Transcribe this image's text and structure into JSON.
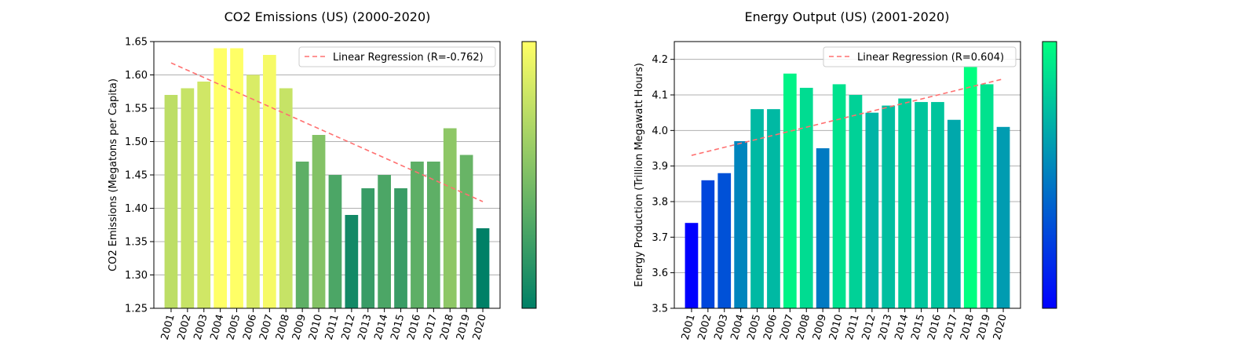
{
  "colors": {
    "regression_line": "#ff7070",
    "grid": "#b0b0b0",
    "summer_cmap": [
      "#008066",
      "#ffff66"
    ],
    "winter_cmap": [
      "#0000ff",
      "#00ff80"
    ]
  },
  "chart_data": [
    {
      "type": "bar",
      "title": "CO2 Emissions (US) (2000-2020)",
      "xlabel": "",
      "ylabel": "CO2 Emissions (Megatons per Capita)",
      "categories": [
        "2001",
        "2002",
        "2003",
        "2004",
        "2005",
        "2006",
        "2007",
        "2008",
        "2009",
        "2010",
        "2011",
        "2012",
        "2013",
        "2014",
        "2015",
        "2016",
        "2017",
        "2018",
        "2019",
        "2020"
      ],
      "values": [
        1.57,
        1.58,
        1.59,
        1.64,
        1.64,
        1.6,
        1.63,
        1.58,
        1.47,
        1.51,
        1.45,
        1.39,
        1.43,
        1.45,
        1.43,
        1.47,
        1.47,
        1.52,
        1.48,
        1.37
      ],
      "ylim": [
        1.25,
        1.65
      ],
      "yticks": [
        "1.25",
        "1.30",
        "1.35",
        "1.40",
        "1.45",
        "1.50",
        "1.55",
        "1.60",
        "1.65"
      ],
      "colormap": "summer",
      "colorbar": true,
      "grid": "y",
      "legend": {
        "placement": "upper-right",
        "label": "Linear Regression (R=-0.762)"
      },
      "regression": {
        "start": 1.618,
        "end": 1.41
      }
    },
    {
      "type": "bar",
      "title": "Energy Output (US) (2001-2020)",
      "xlabel": "",
      "ylabel": "Energy Production (Trillion Megawatt Hours)",
      "categories": [
        "2001",
        "2002",
        "2003",
        "2004",
        "2005",
        "2006",
        "2007",
        "2008",
        "2009",
        "2010",
        "2011",
        "2012",
        "2013",
        "2014",
        "2015",
        "2016",
        "2017",
        "2018",
        "2019",
        "2020"
      ],
      "values": [
        3.74,
        3.86,
        3.88,
        3.97,
        4.06,
        4.06,
        4.16,
        4.12,
        3.95,
        4.13,
        4.1,
        4.05,
        4.07,
        4.09,
        4.08,
        4.08,
        4.03,
        4.18,
        4.13,
        4.01
      ],
      "ylim": [
        3.5,
        4.25
      ],
      "yticks": [
        "3.5",
        "3.6",
        "3.7",
        "3.8",
        "3.9",
        "4.0",
        "4.1",
        "4.2"
      ],
      "colormap": "winter",
      "colorbar": true,
      "grid": "y",
      "legend": {
        "placement": "upper-right",
        "label": "Linear Regression (R=0.604)"
      },
      "regression": {
        "start": 3.93,
        "end": 4.145
      }
    }
  ]
}
